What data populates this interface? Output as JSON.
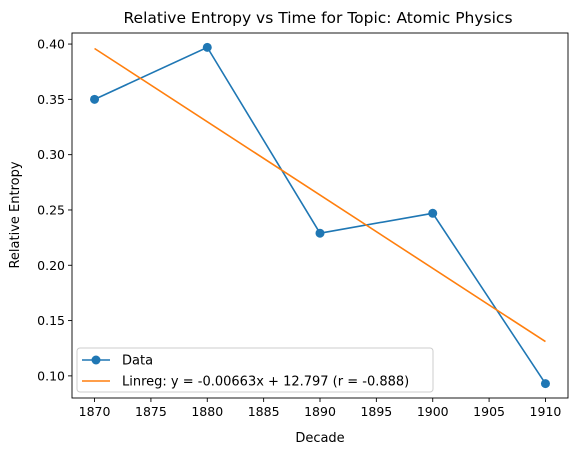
{
  "chart_data": {
    "type": "line",
    "title": "Relative Entropy vs Time for Topic: Atomic Physics",
    "xlabel": "Decade",
    "ylabel": "Relative Entropy",
    "xlim": [
      1868,
      1912
    ],
    "ylim": [
      0.08,
      0.41
    ],
    "x_ticks": [
      1870,
      1875,
      1880,
      1885,
      1890,
      1895,
      1900,
      1905,
      1910
    ],
    "y_ticks": [
      0.1,
      0.15,
      0.2,
      0.25,
      0.3,
      0.35,
      0.4
    ],
    "grid": false,
    "legend_position": "lower-left",
    "series": [
      {
        "name": "Data",
        "color": "#1f77b4",
        "marker": "circle",
        "x": [
          1870,
          1880,
          1890,
          1900,
          1910
        ],
        "y": [
          0.35,
          0.397,
          0.229,
          0.247,
          0.093
        ]
      },
      {
        "name": "Linreg: y = -0.00663x + 12.797 (r = -0.888)",
        "color": "#ff7f0e",
        "marker": "none",
        "x": [
          1870,
          1910
        ],
        "y": [
          0.396,
          0.131
        ]
      }
    ]
  }
}
